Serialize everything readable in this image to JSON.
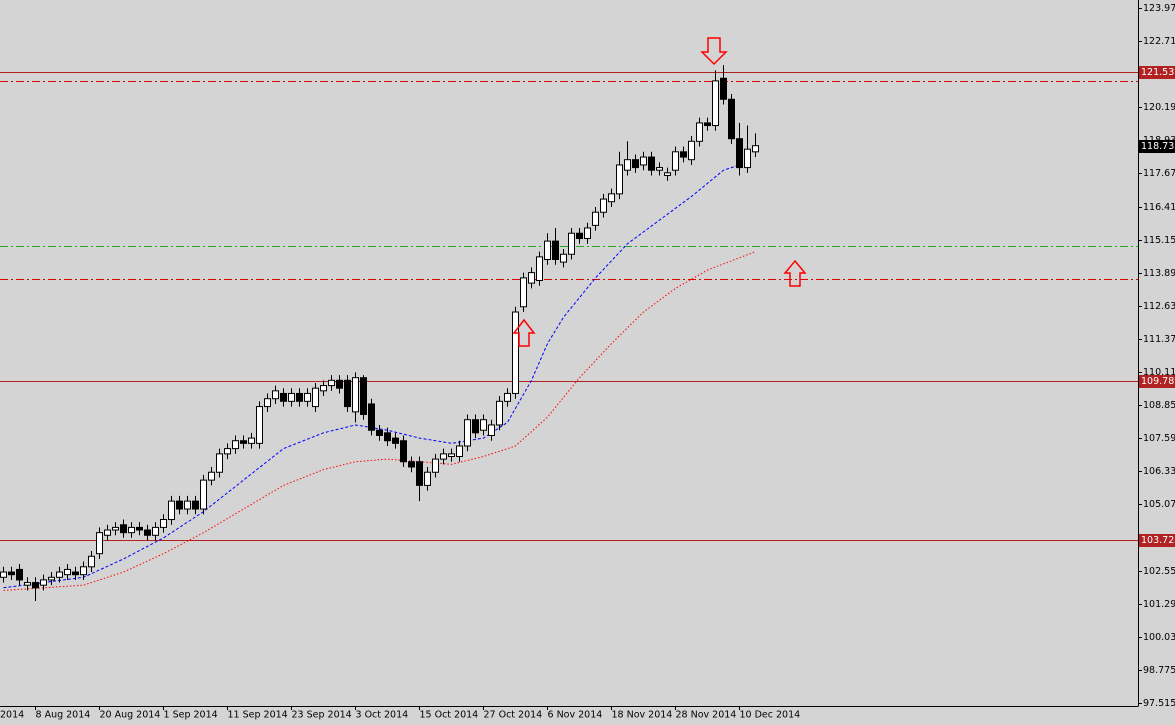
{
  "chart_data": {
    "type": "candlestick",
    "ylim": [
      97.4,
      124.28
    ],
    "yticks": [
      97.515,
      98.775,
      100.035,
      101.295,
      102.555,
      103.815,
      105.075,
      106.335,
      107.595,
      108.855,
      110.115,
      111.375,
      112.635,
      113.895,
      115.155,
      116.415,
      117.675,
      118.935,
      120.195,
      121.455,
      122.715,
      123.975
    ],
    "x_edge_label": "2014",
    "categories": [
      null,
      null,
      null,
      null,
      "8 Aug 2014",
      null,
      null,
      null,
      null,
      null,
      null,
      null,
      "20 Aug 2014",
      null,
      null,
      null,
      null,
      null,
      null,
      null,
      "1 Sep 2014",
      null,
      null,
      null,
      null,
      null,
      null,
      null,
      "11 Sep 2014",
      null,
      null,
      null,
      null,
      null,
      null,
      null,
      "23 Sep 2014",
      null,
      null,
      null,
      null,
      null,
      null,
      null,
      "3 Oct 2014",
      null,
      null,
      null,
      null,
      null,
      null,
      null,
      "15 Oct 2014",
      null,
      null,
      null,
      null,
      null,
      null,
      null,
      "27 Oct 2014",
      null,
      null,
      null,
      null,
      null,
      null,
      null,
      "6 Nov 2014",
      null,
      null,
      null,
      null,
      null,
      null,
      null,
      "18 Nov 2014",
      null,
      null,
      null,
      null,
      null,
      null,
      null,
      "28 Nov 2014",
      null,
      null,
      null,
      null,
      null,
      null,
      null,
      "10 Dec 2014",
      null,
      null
    ],
    "up_color": "#ffffff",
    "down_color": "#000000",
    "open": [
      102.3,
      102.5,
      102.6,
      102.0,
      102.1,
      102.0,
      102.2,
      102.3,
      102.4,
      102.5,
      102.4,
      102.7,
      103.2,
      103.9,
      104.1,
      104.3,
      104.0,
      104.2,
      104.1,
      103.9,
      104.2,
      104.5,
      105.2,
      104.9,
      105.2,
      104.9,
      106.0,
      106.3,
      107.0,
      107.2,
      107.5,
      107.4,
      107.4,
      108.8,
      109.1,
      109.3,
      109.0,
      109.3,
      109.0,
      108.8,
      109.4,
      109.6,
      109.8,
      109.8,
      108.6,
      109.9,
      108.9,
      107.9,
      107.8,
      107.6,
      107.5,
      106.7,
      106.7,
      105.8,
      106.3,
      106.8,
      106.9,
      106.9,
      107.3,
      108.3,
      107.9,
      107.7,
      108.1,
      109.0,
      109.3,
      112.6,
      113.5,
      113.6,
      114.4,
      115.1,
      114.3,
      114.6,
      115.4,
      115.2,
      115.7,
      116.2,
      116.6,
      116.9,
      117.8,
      118.2,
      118.0,
      118.3,
      117.8,
      117.6,
      117.8,
      118.5,
      118.2,
      118.9,
      119.6,
      119.5,
      121.3,
      120.5,
      119.0,
      117.9,
      118.5
    ],
    "high": [
      102.7,
      102.7,
      102.8,
      102.3,
      102.3,
      102.4,
      102.5,
      102.7,
      102.8,
      102.7,
      102.9,
      103.3,
      104.2,
      104.3,
      104.4,
      104.5,
      104.4,
      104.4,
      104.3,
      104.4,
      104.7,
      105.4,
      105.4,
      105.4,
      105.4,
      106.2,
      106.5,
      107.2,
      107.4,
      107.7,
      107.7,
      107.8,
      109.0,
      109.3,
      109.6,
      109.5,
      109.5,
      109.5,
      109.5,
      109.7,
      109.8,
      110.0,
      110.0,
      110.0,
      110.1,
      110.0,
      109.1,
      108.1,
      108.0,
      107.8,
      107.7,
      106.9,
      106.9,
      106.5,
      107.0,
      107.2,
      107.2,
      107.5,
      108.5,
      108.5,
      108.5,
      108.3,
      109.2,
      109.5,
      112.6,
      113.9,
      114.1,
      114.7,
      115.4,
      115.6,
      114.8,
      115.6,
      115.6,
      115.8,
      116.4,
      116.9,
      117.1,
      118.5,
      118.9,
      118.4,
      118.5,
      118.5,
      118.1,
      117.9,
      118.7,
      118.7,
      119.1,
      119.8,
      119.8,
      121.6,
      121.8,
      120.7,
      119.6,
      119.5,
      119.2
    ],
    "low": [
      102.1,
      102.2,
      102.0,
      101.8,
      101.4,
      101.8,
      102.0,
      102.1,
      102.2,
      102.2,
      102.2,
      102.5,
      103.0,
      103.7,
      103.9,
      103.8,
      103.8,
      103.9,
      103.7,
      103.7,
      104.0,
      104.3,
      104.7,
      104.7,
      104.7,
      104.7,
      105.8,
      106.1,
      106.8,
      107.0,
      107.2,
      107.2,
      107.2,
      108.6,
      108.9,
      108.8,
      108.8,
      108.8,
      108.8,
      108.6,
      109.2,
      109.4,
      109.3,
      108.6,
      108.2,
      108.3,
      107.7,
      107.5,
      107.3,
      107.2,
      106.5,
      106.3,
      105.2,
      105.6,
      106.1,
      106.6,
      106.7,
      106.7,
      107.1,
      107.6,
      107.7,
      107.5,
      107.9,
      108.8,
      109.1,
      112.4,
      113.3,
      113.4,
      114.2,
      114.2,
      114.1,
      114.4,
      115.0,
      115.0,
      115.5,
      116.0,
      116.4,
      116.7,
      117.6,
      117.7,
      117.8,
      117.6,
      117.6,
      117.4,
      117.6,
      118.1,
      118.0,
      118.7,
      119.3,
      119.3,
      120.3,
      118.8,
      117.6,
      117.7,
      118.3
    ],
    "close": [
      102.5,
      102.4,
      102.2,
      102.1,
      101.9,
      102.2,
      102.3,
      102.5,
      102.6,
      102.4,
      102.7,
      103.1,
      104.0,
      104.1,
      104.2,
      104.0,
      104.2,
      104.1,
      103.9,
      104.2,
      104.5,
      105.2,
      104.9,
      105.2,
      104.9,
      106.0,
      106.3,
      107.0,
      107.2,
      107.5,
      107.4,
      107.6,
      108.8,
      109.1,
      109.4,
      109.0,
      109.3,
      109.0,
      109.3,
      109.5,
      109.6,
      109.8,
      109.5,
      108.8,
      109.9,
      108.5,
      107.9,
      107.7,
      107.5,
      107.4,
      106.7,
      106.5,
      105.8,
      106.3,
      106.8,
      107.0,
      107.0,
      107.3,
      108.3,
      107.8,
      108.3,
      108.1,
      109.0,
      109.3,
      112.4,
      113.7,
      113.9,
      114.5,
      115.1,
      114.4,
      114.6,
      115.4,
      115.2,
      115.6,
      116.2,
      116.7,
      116.9,
      118.0,
      118.2,
      117.9,
      118.3,
      117.8,
      117.9,
      117.7,
      118.5,
      118.3,
      118.9,
      119.6,
      119.5,
      121.2,
      120.5,
      119.0,
      117.9,
      118.6,
      118.733
    ],
    "moving_averages": [
      {
        "color": "#0000ff",
        "x": [
          0,
          10,
          15,
          20,
          25,
          30,
          35,
          40,
          44,
          48,
          52,
          56,
          60,
          63,
          66,
          68,
          70,
          74,
          78,
          82,
          86,
          90,
          92
        ],
        "values": [
          101.9,
          102.3,
          103.0,
          103.8,
          104.8,
          106.0,
          107.2,
          107.8,
          108.1,
          107.9,
          107.6,
          107.4,
          107.6,
          108.2,
          109.8,
          111.2,
          112.2,
          113.7,
          115.0,
          115.9,
          116.8,
          117.8,
          118.0
        ]
      },
      {
        "color": "#ff0000",
        "x": [
          0,
          10,
          15,
          20,
          25,
          30,
          35,
          40,
          44,
          48,
          52,
          56,
          60,
          64,
          68,
          72,
          76,
          80,
          84,
          88,
          94
        ],
        "values": [
          101.8,
          102.0,
          102.5,
          103.2,
          104.0,
          104.9,
          105.8,
          106.4,
          106.7,
          106.8,
          106.7,
          106.6,
          106.9,
          107.3,
          108.4,
          109.9,
          111.2,
          112.4,
          113.3,
          114.0,
          114.7
        ]
      }
    ],
    "levels": [
      {
        "value": 121.537,
        "style": "solid",
        "color": "#b22222"
      },
      {
        "value": 109.789,
        "style": "solid",
        "color": "#b22222"
      },
      {
        "value": 103.722,
        "style": "solid",
        "color": "#b22222"
      },
      {
        "value": 121.19,
        "style": "dashdot",
        "color": "#e00000"
      },
      {
        "value": 114.9,
        "style": "dashdot",
        "color": "#22aa22"
      },
      {
        "value": 113.64,
        "style": "dashdot",
        "color": "#e00000"
      }
    ],
    "last_price": 118.733
  }
}
